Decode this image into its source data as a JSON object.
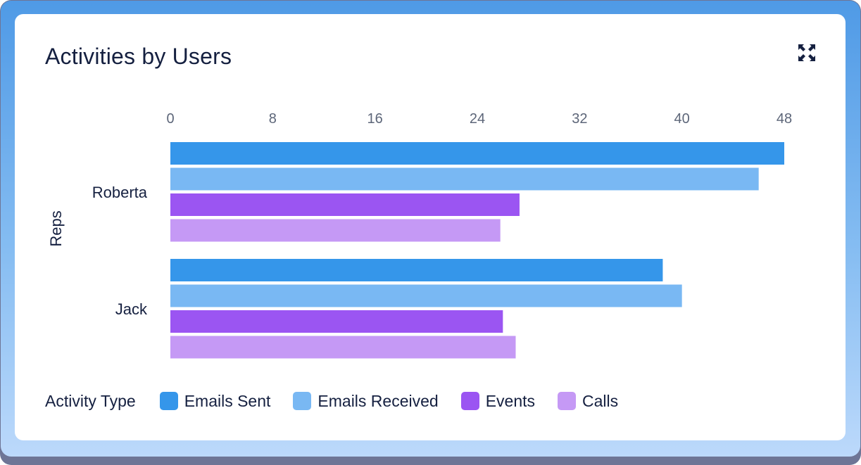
{
  "header": {
    "title": "Activities by Users",
    "expand_icon": "expand-icon"
  },
  "chart_data": {
    "type": "bar",
    "orientation": "horizontal",
    "y_axis_title": "Reps",
    "categories": [
      "Roberta",
      "Jack"
    ],
    "x_ticks": [
      "0",
      "8",
      "16",
      "24",
      "32",
      "40",
      "48"
    ],
    "xlim": [
      0,
      48
    ],
    "x_axis_position": "top",
    "grid": false,
    "legend_title": "Activity Type",
    "legend_position": "bottom-left",
    "series": [
      {
        "name": "Emails Sent",
        "color": "#3596ea",
        "values": [
          48,
          38.5
        ]
      },
      {
        "name": "Emails Received",
        "color": "#79b8f3",
        "values": [
          46,
          40
        ]
      },
      {
        "name": "Events",
        "color": "#9b55f2",
        "values": [
          27.3,
          26
        ]
      },
      {
        "name": "Calls",
        "color": "#c599f5",
        "values": [
          25.8,
          27
        ]
      }
    ]
  }
}
